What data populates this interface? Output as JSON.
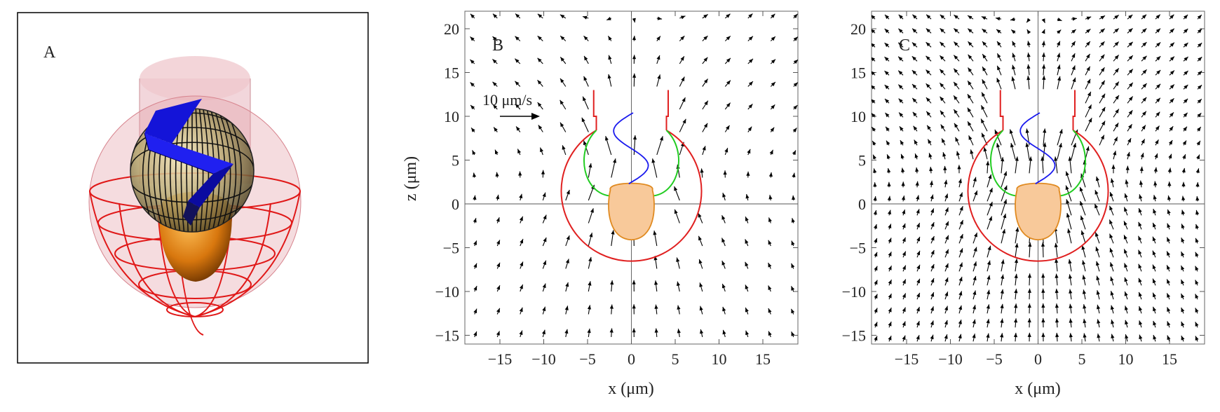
{
  "panels": {
    "a": {
      "label": "A"
    },
    "b": {
      "label": "B",
      "scale_label": "10 μm/s",
      "scale_value_um_per_s": 10
    },
    "c": {
      "label": "C"
    }
  },
  "axes": {
    "xlabel": "x (μm)",
    "ylabel": "z (μm)",
    "xlim": [
      -19,
      19
    ],
    "ylim": [
      -16,
      22
    ],
    "x_ticks": [
      -15,
      -10,
      -5,
      0,
      5,
      10,
      15
    ],
    "x_tick_labels": [
      "−15",
      "−10",
      "−5",
      "0",
      "5",
      "10",
      "15"
    ],
    "y_ticks": [
      -15,
      -10,
      -5,
      0,
      5,
      10,
      15,
      20
    ],
    "y_tick_labels": [
      "−15",
      "−10",
      "−5",
      "0",
      "5",
      "10",
      "15",
      "20"
    ]
  },
  "colors": {
    "cell_body": "#e02020",
    "collar": "#e02020",
    "interior": "#22cc22",
    "flagellum": "#1a1aee",
    "nucleus_fill": "#f8c99a",
    "nucleus_stroke": "#e08a20",
    "arrow": "#000000"
  },
  "chart_data": [
    {
      "type": "vector_field",
      "panel": "B",
      "title": "",
      "xlabel": "x (μm)",
      "ylabel": "z (μm)",
      "xlim": [
        -19,
        19
      ],
      "ylim": [
        -16,
        22
      ],
      "grid": false,
      "annotation": "10 μm/s",
      "cell_outline": {
        "center": [
          0,
          0.5
        ],
        "radius": 8
      },
      "collar_x": [
        -4,
        4
      ],
      "collar_z": [
        10,
        13
      ]
    },
    {
      "type": "vector_field",
      "panel": "C",
      "title": "",
      "xlabel": "x (μm)",
      "ylabel": "z (μm)",
      "xlim": [
        -19,
        19
      ],
      "ylim": [
        -16,
        22
      ],
      "grid": false,
      "cell_outline": {
        "center": [
          0,
          0.5
        ],
        "radius": 8
      },
      "collar_x": [
        -4,
        4
      ],
      "collar_z": [
        10,
        13
      ]
    }
  ]
}
